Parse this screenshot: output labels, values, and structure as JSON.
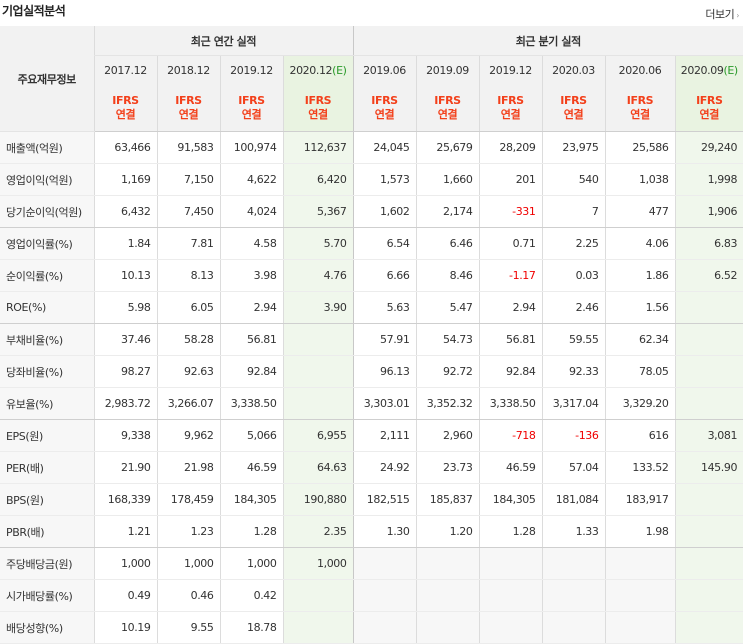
{
  "header": {
    "title": "기업실적분석",
    "more_label": "더보기",
    "more_arrow": "›"
  },
  "table": {
    "corner_label": "주요재무정보",
    "group_annual": "최근 연간 실적",
    "group_quarter": "최근 분기 실적",
    "periods": [
      "2017.12",
      "2018.12",
      "2019.12",
      "2020.12",
      "2019.06",
      "2019.09",
      "2019.12",
      "2020.03",
      "2020.06",
      "2020.09"
    ],
    "estimate_mark": "(E)",
    "ifrs_top": "IFRS",
    "ifrs_bottom": "연결",
    "rows": [
      {
        "label": "매출액(억원)",
        "values": [
          "63,466",
          "91,583",
          "100,974",
          "112,637",
          "24,045",
          "25,679",
          "28,209",
          "23,975",
          "25,586",
          "29,240"
        ]
      },
      {
        "label": "영업이익(억원)",
        "values": [
          "1,169",
          "7,150",
          "4,622",
          "6,420",
          "1,573",
          "1,660",
          "201",
          "540",
          "1,038",
          "1,998"
        ]
      },
      {
        "label": "당기순이익(억원)",
        "values": [
          "6,432",
          "7,450",
          "4,024",
          "5,367",
          "1,602",
          "2,174",
          "-331",
          "7",
          "477",
          "1,906"
        ]
      },
      {
        "label": "영업이익률(%)",
        "values": [
          "1.84",
          "7.81",
          "4.58",
          "5.70",
          "6.54",
          "6.46",
          "0.71",
          "2.25",
          "4.06",
          "6.83"
        ]
      },
      {
        "label": "순이익률(%)",
        "values": [
          "10.13",
          "8.13",
          "3.98",
          "4.76",
          "6.66",
          "8.46",
          "-1.17",
          "0.03",
          "1.86",
          "6.52"
        ]
      },
      {
        "label": "ROE(%)",
        "values": [
          "5.98",
          "6.05",
          "2.94",
          "3.90",
          "5.63",
          "5.47",
          "2.94",
          "2.46",
          "1.56",
          ""
        ]
      },
      {
        "label": "부채비율(%)",
        "values": [
          "37.46",
          "58.28",
          "56.81",
          "",
          "57.91",
          "54.73",
          "56.81",
          "59.55",
          "62.34",
          ""
        ]
      },
      {
        "label": "당좌비율(%)",
        "values": [
          "98.27",
          "92.63",
          "92.84",
          "",
          "96.13",
          "92.72",
          "92.84",
          "92.33",
          "78.05",
          ""
        ]
      },
      {
        "label": "유보율(%)",
        "values": [
          "2,983.72",
          "3,266.07",
          "3,338.50",
          "",
          "3,303.01",
          "3,352.32",
          "3,338.50",
          "3,317.04",
          "3,329.20",
          ""
        ]
      },
      {
        "label": "EPS(원)",
        "values": [
          "9,338",
          "9,962",
          "5,066",
          "6,955",
          "2,111",
          "2,960",
          "-718",
          "-136",
          "616",
          "3,081"
        ]
      },
      {
        "label": "PER(배)",
        "values": [
          "21.90",
          "21.98",
          "46.59",
          "64.63",
          "24.92",
          "23.73",
          "46.59",
          "57.04",
          "133.52",
          "145.90"
        ]
      },
      {
        "label": "BPS(원)",
        "values": [
          "168,339",
          "178,459",
          "184,305",
          "190,880",
          "182,515",
          "185,837",
          "184,305",
          "181,084",
          "183,917",
          ""
        ]
      },
      {
        "label": "PBR(배)",
        "values": [
          "1.21",
          "1.23",
          "1.28",
          "2.35",
          "1.30",
          "1.20",
          "1.28",
          "1.33",
          "1.98",
          ""
        ]
      },
      {
        "label": "주당배당금(원)",
        "values": [
          "1,000",
          "1,000",
          "1,000",
          "1,000",
          "",
          "",
          "",
          "",
          "",
          ""
        ]
      },
      {
        "label": "시가배당률(%)",
        "values": [
          "0.49",
          "0.46",
          "0.42",
          "",
          "",
          "",
          "",
          "",
          "",
          ""
        ]
      },
      {
        "label": "배당성향(%)",
        "values": [
          "10.19",
          "9.55",
          "18.78",
          "",
          "",
          "",
          "",
          "",
          "",
          ""
        ]
      }
    ]
  }
}
